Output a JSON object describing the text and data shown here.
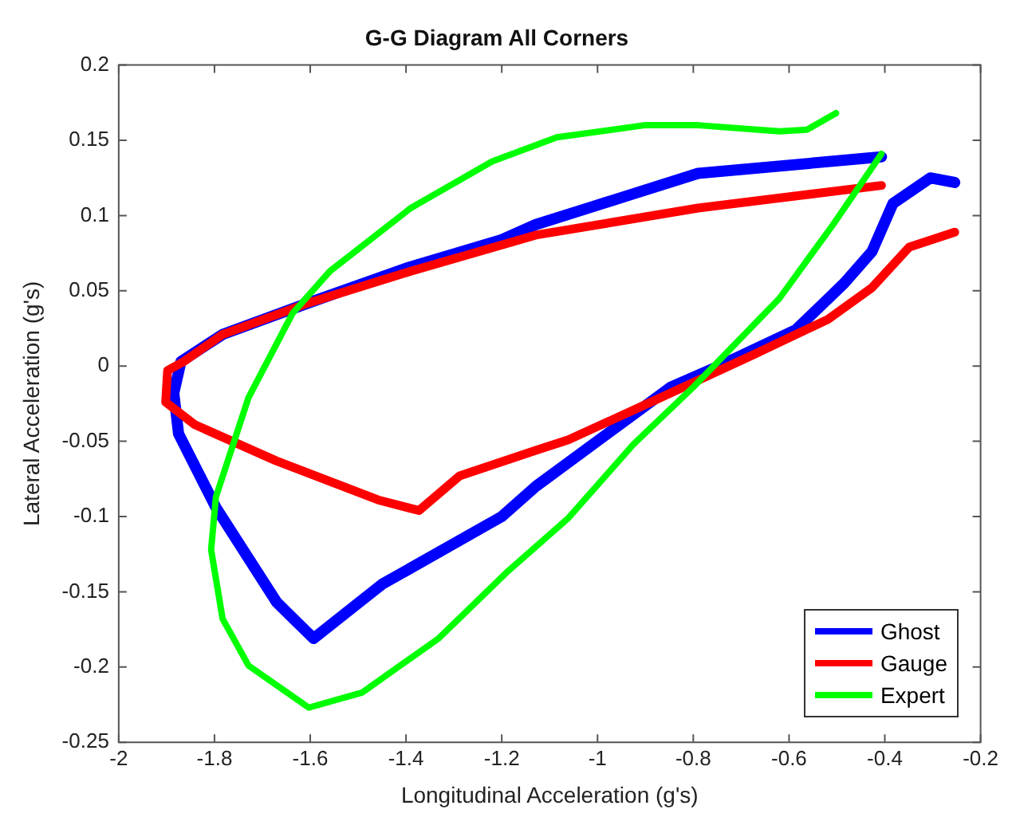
{
  "chart_data": {
    "type": "line",
    "title": "G-G Diagram All Corners",
    "xlabel": "Longitudinal Acceleration (g's)",
    "ylabel": "Lateral Acceleration (g's)",
    "xlim": [
      -2,
      -0.2
    ],
    "xticks": [
      -2,
      -1.8,
      -1.6,
      -1.4,
      -1.2,
      -1,
      -0.8,
      -0.6,
      -0.4,
      -0.2
    ],
    "ylim": [
      -0.25,
      0.2
    ],
    "yticks": [
      -0.25,
      -0.2,
      -0.15,
      -0.1,
      -0.05,
      0,
      0.05,
      0.1,
      0.15,
      0.2
    ],
    "grid": false,
    "legend": "bottom right",
    "marker": "none",
    "line_style": "solid",
    "series": [
      {
        "name": "Ghost",
        "color": "#0000ff",
        "x": [
          -0.254,
          -0.305,
          -0.383,
          -0.427,
          -0.485,
          -0.586,
          -0.746,
          -0.847,
          -1.129,
          -1.2,
          -1.45,
          -1.593,
          -1.67,
          -1.797,
          -1.875,
          -1.885,
          -1.87,
          -1.783,
          -1.603,
          -1.4,
          -1.2,
          -1.129,
          -0.79,
          -0.407
        ],
        "values": [
          0.122,
          0.125,
          0.108,
          0.076,
          0.055,
          0.024,
          0,
          -0.014,
          -0.08,
          -0.1,
          -0.145,
          -0.181,
          -0.157,
          -0.094,
          -0.045,
          -0.018,
          0.003,
          0.021,
          0.042,
          0.065,
          0.084,
          0.094,
          0.128,
          0.139
        ]
      },
      {
        "name": "Gauge",
        "color": "#ff0000",
        "x": [
          -0.254,
          -0.349,
          -0.427,
          -0.519,
          -0.678,
          -0.868,
          -1.061,
          -1.129,
          -1.288,
          -1.373,
          -1.458,
          -1.671,
          -1.841,
          -1.902,
          -1.898,
          -1.864,
          -1.783,
          -1.603,
          -1.39,
          -1.129,
          -0.79,
          -0.407
        ],
        "values": [
          0.089,
          0.079,
          0.052,
          0.031,
          0.007,
          -0.021,
          -0.049,
          -0.056,
          -0.073,
          -0.096,
          -0.089,
          -0.063,
          -0.039,
          -0.024,
          -0.003,
          0.003,
          0.021,
          0.042,
          0.063,
          0.087,
          0.105,
          0.12
        ]
      },
      {
        "name": "Expert",
        "color": "#00ff00",
        "x": [
          -0.407,
          -0.508,
          -0.62,
          -0.8,
          -0.925,
          -1.061,
          -1.186,
          -1.332,
          -1.492,
          -1.603,
          -1.729,
          -1.783,
          -1.807,
          -1.797,
          -1.729,
          -1.637,
          -1.559,
          -1.39,
          -1.22,
          -1.085,
          -0.902,
          -0.79,
          -0.62,
          -0.563,
          -0.502
        ],
        "values": [
          0.141,
          0.094,
          0.045,
          -0.014,
          -0.052,
          -0.101,
          -0.136,
          -0.181,
          -0.217,
          -0.227,
          -0.199,
          -0.168,
          -0.122,
          -0.087,
          -0.021,
          0.035,
          0.063,
          0.105,
          0.136,
          0.152,
          0.16,
          0.16,
          0.156,
          0.157,
          0.168
        ]
      }
    ]
  }
}
